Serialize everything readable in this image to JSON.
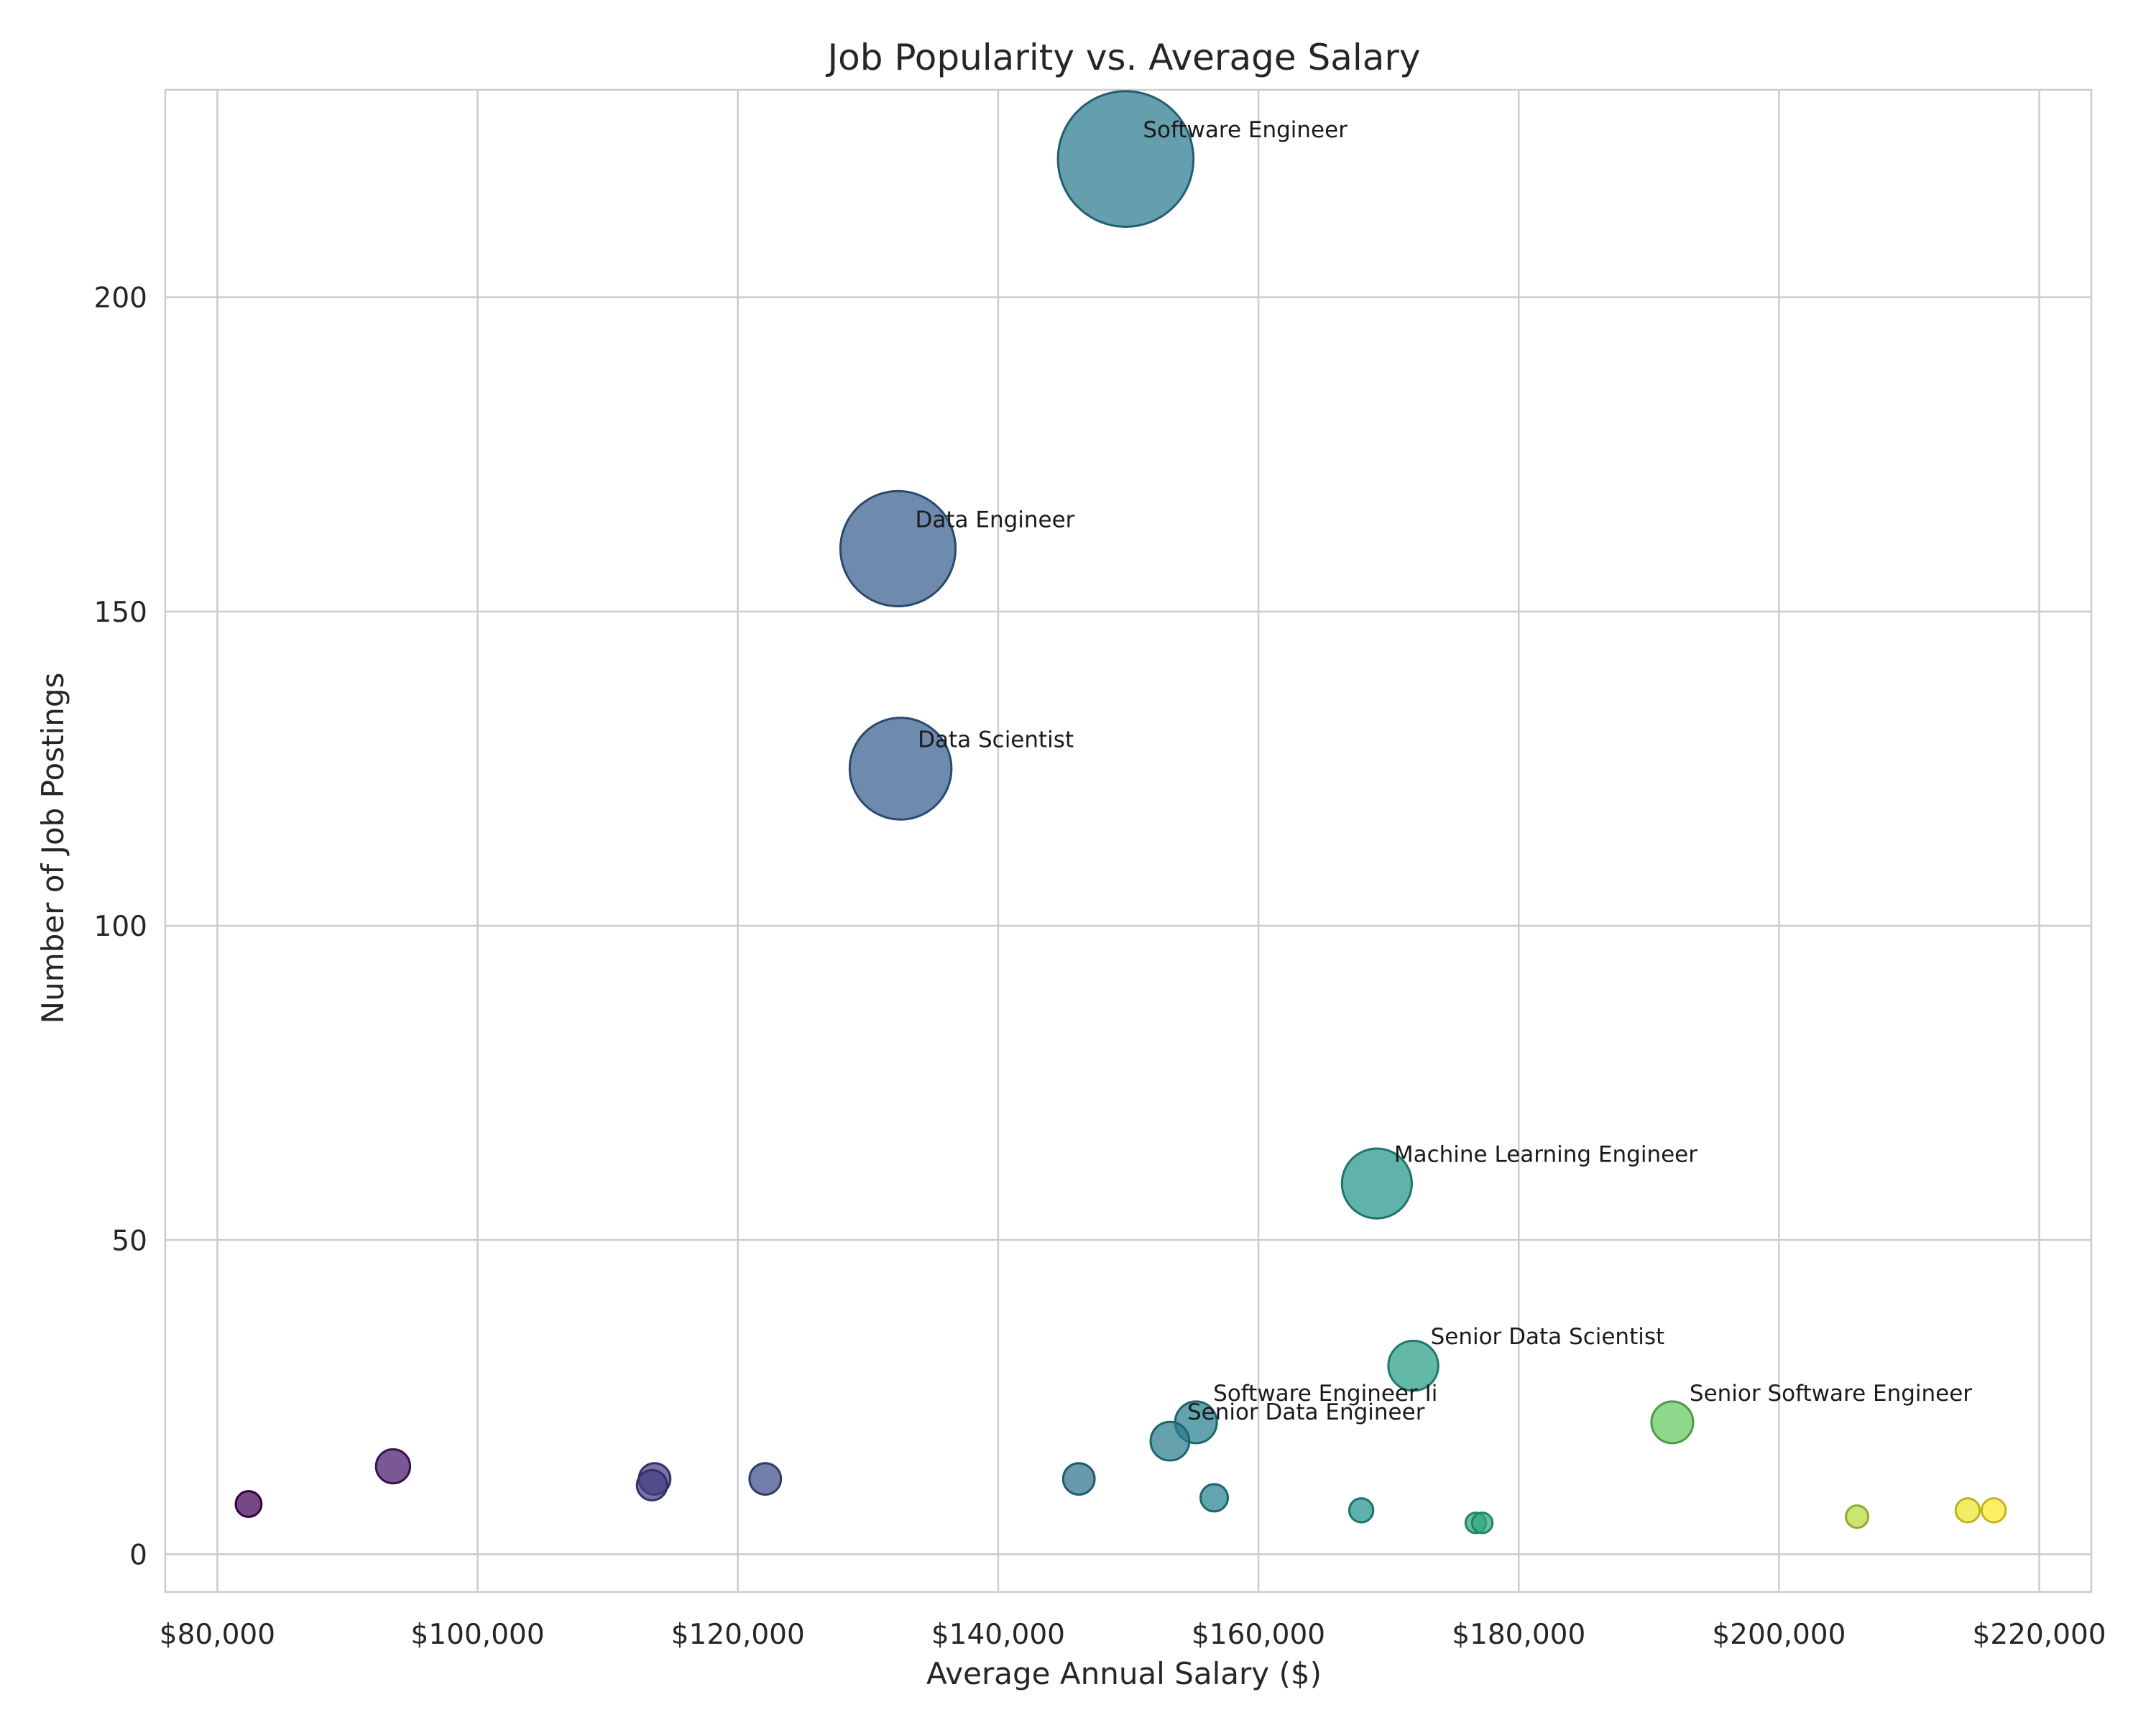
{
  "chart_data": {
    "type": "scatter",
    "title": "Job Popularity vs. Average Salary",
    "xlabel": "Average Annual Salary ($)",
    "ylabel": "Number of Job Postings",
    "xlim": [
      76000,
      224000
    ],
    "ylim": [
      -6,
      233
    ],
    "xticks": [
      80000,
      100000,
      120000,
      140000,
      160000,
      180000,
      200000,
      220000
    ],
    "xtick_labels": [
      "$80,000",
      "$100,000",
      "$120,000",
      "$140,000",
      "$160,000",
      "$180,000",
      "$200,000",
      "$220,000"
    ],
    "yticks": [
      0,
      50,
      100,
      150,
      200
    ],
    "ytick_labels": [
      "0",
      "50",
      "100",
      "150",
      "200"
    ],
    "grid": true,
    "colormap": "viridis",
    "marker_size_encodes": "Number of Job Postings",
    "points": [
      {
        "label": "",
        "x": 82400,
        "y": 8
      },
      {
        "label": "",
        "x": 93500,
        "y": 14
      },
      {
        "label": "",
        "x": 113400,
        "y": 11
      },
      {
        "label": "",
        "x": 113600,
        "y": 12
      },
      {
        "label": "",
        "x": 122100,
        "y": 12
      },
      {
        "label": "Data Engineer",
        "x": 132300,
        "y": 160
      },
      {
        "label": "Data Scientist",
        "x": 132500,
        "y": 125
      },
      {
        "label": "",
        "x": 146200,
        "y": 12
      },
      {
        "label": "Software Engineer",
        "x": 149800,
        "y": 222
      },
      {
        "label": "Senior Data Engineer",
        "x": 153200,
        "y": 18
      },
      {
        "label": "Software Engineer Ii",
        "x": 155200,
        "y": 21
      },
      {
        "label": "",
        "x": 156600,
        "y": 9
      },
      {
        "label": "",
        "x": 167900,
        "y": 7
      },
      {
        "label": "Machine Learning Engineer",
        "x": 169100,
        "y": 59
      },
      {
        "label": "Senior Data Scientist",
        "x": 171900,
        "y": 30
      },
      {
        "label": "",
        "x": 176700,
        "y": 5
      },
      {
        "label": "",
        "x": 177200,
        "y": 5
      },
      {
        "label": "Senior Software Engineer",
        "x": 191800,
        "y": 21
      },
      {
        "label": "",
        "x": 206000,
        "y": 6
      },
      {
        "label": "",
        "x": 214500,
        "y": 7
      },
      {
        "label": "",
        "x": 216500,
        "y": 7
      }
    ]
  }
}
